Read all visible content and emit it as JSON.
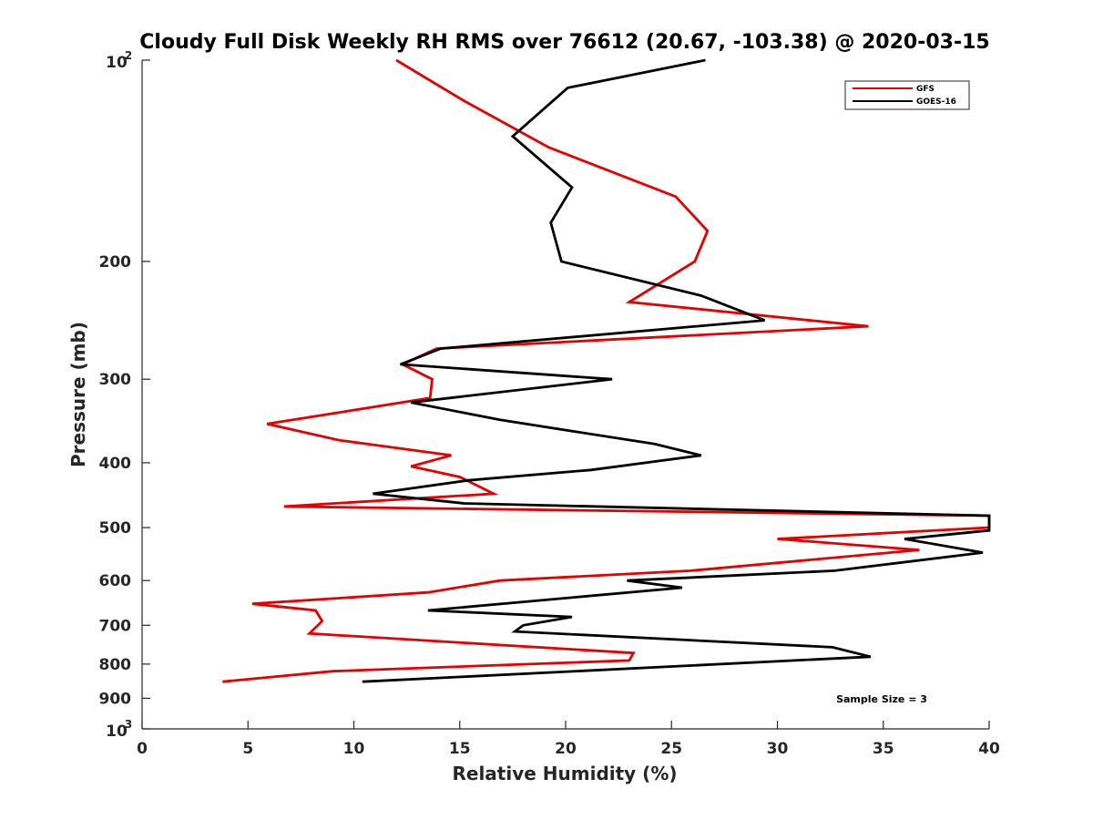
{
  "chart_data": {
    "type": "line",
    "title": "Cloudy Full Disk Weekly RH RMS over 76612 (20.67, -103.38) @ 2020-03-15",
    "xlabel": "Relative Humidity (%)",
    "ylabel": "Pressure (mb)",
    "xlim": [
      0,
      40
    ],
    "ylim": [
      100,
      1000
    ],
    "yscale": "log",
    "y_inverted": true,
    "grid": false,
    "legend_position": "top-right",
    "x_ticks": [
      "0",
      "5",
      "10",
      "15",
      "20",
      "25",
      "30",
      "35",
      "40"
    ],
    "y_ticks": [
      {
        "value": 200,
        "label": "200"
      },
      {
        "value": 300,
        "label": "300"
      },
      {
        "value": 400,
        "label": "400"
      },
      {
        "value": 500,
        "label": "500"
      },
      {
        "value": 600,
        "label": "600"
      },
      {
        "value": 700,
        "label": "700"
      },
      {
        "value": 800,
        "label": "800"
      },
      {
        "value": 900,
        "label": "900"
      }
    ],
    "y_power_ticks": [
      {
        "value": 100,
        "base": "10",
        "exp": "2"
      },
      {
        "value": 1000,
        "base": "10",
        "exp": "3"
      }
    ],
    "annotation": "Sample Size = 3",
    "series": [
      {
        "name": "GFS",
        "color": "#e60000",
        "points": [
          [
            12.0,
            100
          ],
          [
            15.2,
            115
          ],
          [
            19.2,
            135
          ],
          [
            25.2,
            160
          ],
          [
            26.7,
            180
          ],
          [
            26.1,
            200
          ],
          [
            23.0,
            230
          ],
          [
            34.3,
            250
          ],
          [
            13.9,
            270
          ],
          [
            12.3,
            285
          ],
          [
            13.7,
            300
          ],
          [
            13.6,
            320
          ],
          [
            5.9,
            350
          ],
          [
            9.3,
            370
          ],
          [
            14.6,
            390
          ],
          [
            12.7,
            405
          ],
          [
            15.0,
            420
          ],
          [
            16.6,
            445
          ],
          [
            6.7,
            465
          ],
          [
            40.0,
            480
          ],
          [
            40.0,
            500
          ],
          [
            30.0,
            520
          ],
          [
            36.7,
            540
          ],
          [
            25.9,
            580
          ],
          [
            16.9,
            600
          ],
          [
            13.5,
            625
          ],
          [
            5.2,
            650
          ],
          [
            8.2,
            665
          ],
          [
            8.5,
            690
          ],
          [
            7.9,
            720
          ],
          [
            23.2,
            770
          ],
          [
            23.0,
            790
          ],
          [
            9.0,
            820
          ],
          [
            3.8,
            850
          ]
        ]
      },
      {
        "name": "GOES-16",
        "color": "#000000",
        "points": [
          [
            26.6,
            100
          ],
          [
            20.1,
            110
          ],
          [
            17.5,
            130
          ],
          [
            20.3,
            155
          ],
          [
            19.3,
            175
          ],
          [
            19.8,
            200
          ],
          [
            26.4,
            225
          ],
          [
            29.4,
            245
          ],
          [
            14.1,
            270
          ],
          [
            12.2,
            285
          ],
          [
            22.2,
            300
          ],
          [
            12.7,
            325
          ],
          [
            16.9,
            345
          ],
          [
            24.2,
            375
          ],
          [
            26.4,
            390
          ],
          [
            21.2,
            410
          ],
          [
            15.4,
            425
          ],
          [
            10.9,
            445
          ],
          [
            15.2,
            460
          ],
          [
            40.0,
            480
          ],
          [
            40.0,
            505
          ],
          [
            36.0,
            520
          ],
          [
            39.7,
            545
          ],
          [
            32.7,
            580
          ],
          [
            22.9,
            600
          ],
          [
            25.5,
            615
          ],
          [
            13.5,
            665
          ],
          [
            20.3,
            680
          ],
          [
            18.0,
            700
          ],
          [
            17.6,
            715
          ],
          [
            32.6,
            755
          ],
          [
            34.4,
            780
          ],
          [
            10.4,
            850
          ]
        ]
      }
    ]
  }
}
